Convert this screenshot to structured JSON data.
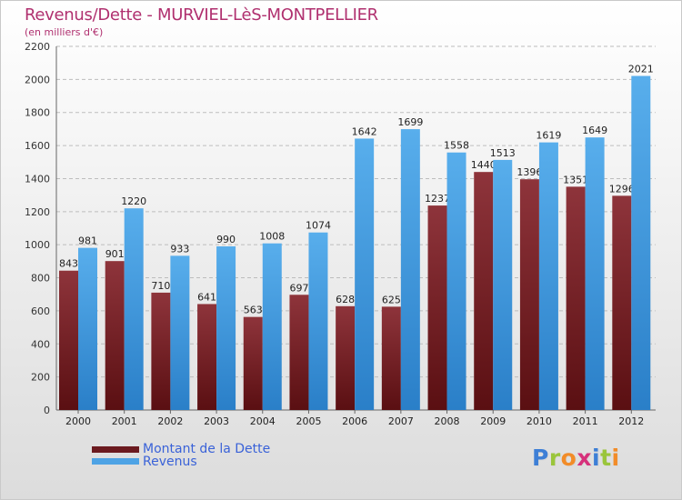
{
  "chart_data": {
    "type": "bar",
    "title": "Revenus/Dette - MURVIEL-LèS-MONTPELLIER",
    "subtitle": "(en milliers d'€)",
    "xlabel": "",
    "ylabel": "",
    "ylim": [
      0,
      2200
    ],
    "yticks": [
      0,
      200,
      400,
      600,
      800,
      1000,
      1200,
      1400,
      1600,
      1800,
      2000,
      2200
    ],
    "categories": [
      "2000",
      "2001",
      "2002",
      "2003",
      "2004",
      "2005",
      "2006",
      "2007",
      "2008",
      "2009",
      "2010",
      "2011",
      "2012"
    ],
    "series": [
      {
        "name": "Montant de la Dette",
        "color": "#8b2e35",
        "value_labels": [
          "843",
          "901",
          "710",
          "641",
          "563",
          "697",
          "628",
          "625",
          "1237",
          "1440",
          "1396",
          "1351",
          "1296"
        ],
        "values": [
          843,
          901,
          710,
          641,
          563,
          697,
          628,
          625,
          1237,
          1440,
          1396,
          1351,
          1296
        ]
      },
      {
        "name": "Revenus",
        "color": "#4ea3e5",
        "value_labels": [
          "981",
          "1220",
          "933",
          "990",
          "1008",
          "1074",
          "1642",
          "1699",
          "1558",
          "1513",
          "1619",
          "1649",
          "2021"
        ],
        "values": [
          981,
          1220,
          933,
          990,
          1008,
          1074,
          1642,
          1699,
          1558,
          1513,
          1619,
          1649,
          2021
        ]
      }
    ],
    "grid": true,
    "legend": "bottom-left"
  },
  "brand": {
    "logo_letters": [
      "P",
      "r",
      "o",
      "x",
      "i",
      "t",
      "i"
    ],
    "logo_colors": [
      "#3d7fd6",
      "#9ac53b",
      "#f28c28",
      "#d6317b",
      "#3d7fd6",
      "#9ac53b",
      "#f28c28"
    ]
  }
}
